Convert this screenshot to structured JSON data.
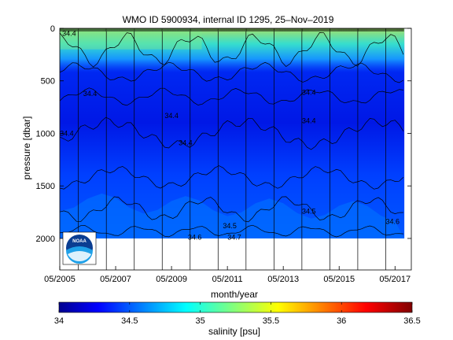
{
  "chart_data": {
    "type": "heatmap",
    "title": "WMO ID 5900934, internal ID 1295, 25–Nov–2019",
    "xlabel": "month/year",
    "ylabel": "pressure [dbar]",
    "x_ticks": [
      "05/2005",
      "05/2007",
      "05/2009",
      "05/2011",
      "05/2013",
      "05/2015",
      "05/2017"
    ],
    "y_ticks": [
      0,
      500,
      1000,
      1500,
      2000
    ],
    "y_axis_inverted": true,
    "ylim": [
      0,
      2300
    ],
    "xlim": [
      "2005-05",
      "2017-12"
    ],
    "data_end": "2017-09",
    "profile_depth_dbar": 2000,
    "colorbar": {
      "label": "salinity [psu]",
      "ticks": [
        34,
        34.5,
        35,
        35.5,
        36,
        36.5
      ],
      "range": [
        34,
        36.5
      ],
      "colormap": "jet"
    },
    "contour_labels": [
      {
        "text": "34.4",
        "date": "2005-09",
        "p": 50
      },
      {
        "text": "34.4",
        "date": "2006-06",
        "p": 620
      },
      {
        "text": "34.4",
        "date": "2009-05",
        "p": 830
      },
      {
        "text": "34.4",
        "date": "2009-11",
        "p": 1090
      },
      {
        "text": "34.4",
        "date": "2005-08",
        "p": 1000
      },
      {
        "text": "34.4",
        "date": "2014-04",
        "p": 880
      },
      {
        "text": "34.4",
        "date": "2014-04",
        "p": 610
      },
      {
        "text": "34.5",
        "date": "2014-04",
        "p": 1740
      },
      {
        "text": "34.5",
        "date": "2011-06",
        "p": 1880
      },
      {
        "text": "34.6",
        "date": "2010-03",
        "p": 1990
      },
      {
        "text": "34.6",
        "date": "2017-04",
        "p": 1840
      },
      {
        "text": "34.7",
        "date": "2011-08",
        "p": 1990
      }
    ]
  },
  "logo": {
    "name": "NOAA",
    "text": "NOAA"
  }
}
